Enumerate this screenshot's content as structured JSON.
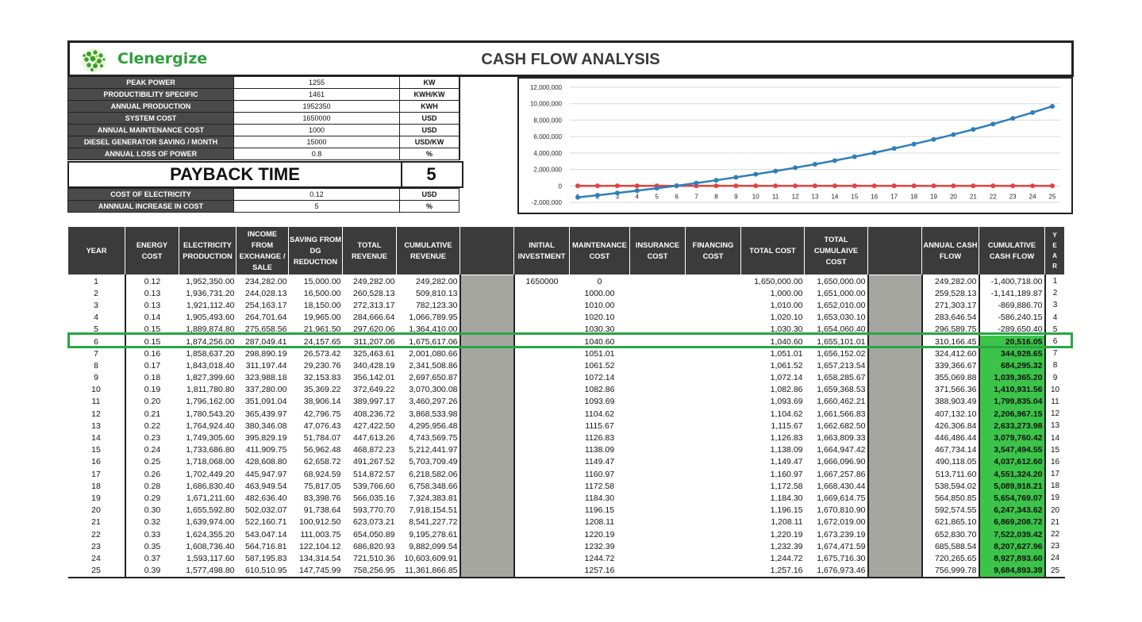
{
  "header": {
    "brand": "Clenergize",
    "title": "CASH FLOW ANALYSIS",
    "logo_icon": "green-dotted-sphere-icon"
  },
  "params": [
    {
      "label": "PEAK POWER",
      "value": "1255",
      "unit": "KW"
    },
    {
      "label": "PRODUCTIBILITY SPECIFIC",
      "value": "1461",
      "unit": "KWH/KW"
    },
    {
      "label": "ANNUAL PRODUCTION",
      "value": "1952350",
      "unit": "KWH"
    },
    {
      "label": "SYSTEM COST",
      "value": "1650000",
      "unit": "USD"
    },
    {
      "label": "ANNUAL MAINTENANCE COST",
      "value": "1000",
      "unit": "USD"
    },
    {
      "label": "DIESEL GENERATOR SAVING / MONTH",
      "value": "15000",
      "unit": "USD/KW"
    },
    {
      "label": "ANNUAL LOSS OF POWER",
      "value": "0.8",
      "unit": "%"
    }
  ],
  "payback": {
    "label": "PAYBACK TIME",
    "value": "5"
  },
  "params2": [
    {
      "label": "COST OF ELECTRICITY",
      "value": "0.12",
      "unit": "USD"
    },
    {
      "label": "ANNNUAL INCREASE IN COST",
      "value": "5",
      "unit": "%"
    }
  ],
  "table": {
    "headers": {
      "year": "YEAR",
      "energy_cost": "ENERGY COST",
      "electricity_production": "ELECTRICITY PRODUCTION",
      "income": "INCOME FROM EXCHANGE / SALE",
      "saving": "SAVING FROM DG REDUCTION",
      "total_revenue": "TOTAL REVENUE",
      "cumulative_revenue": "CUMULATIVE REVENUE",
      "initial_investment": "INITIAL INVESTMENT",
      "maintenance_cost": "MAINTENANCE COST",
      "insurance_cost": "INSURANCE COST",
      "financing_cost": "FINANCING COST",
      "total_cost": "TOTAL COST",
      "total_cumulative_cost": "TOTAL CUMULAIVE COST",
      "annual_cash_flow": "ANNUAL CASH FLOW",
      "cumulative_cash_flow": "CUMULATIVE CASH FLOW",
      "year_vertical": "Y E A R"
    },
    "highlight_year": 6,
    "rows": [
      {
        "year": "1",
        "ec": "0.12",
        "prod": "1,952,350.00",
        "inc": "234,282.00",
        "sav": "15,000.00",
        "rev": "249,282.00",
        "crev": "249,282.00",
        "init": "1650000",
        "maint": "0",
        "ins": "",
        "fin": "",
        "tcost": "1,650,000.00",
        "tcum": "1,650,000.00",
        "acf": "249,282.00",
        "ccf": "-1,400,718.00"
      },
      {
        "year": "2",
        "ec": "0.13",
        "prod": "1,936,731.20",
        "inc": "244,028.13",
        "sav": "16,500.00",
        "rev": "260,528.13",
        "crev": "509,810.13",
        "init": "",
        "maint": "1000.00",
        "ins": "",
        "fin": "",
        "tcost": "1,000.00",
        "tcum": "1,651,000.00",
        "acf": "259,528.13",
        "ccf": "-1,141,189.87"
      },
      {
        "year": "3",
        "ec": "0.13",
        "prod": "1,921,112.40",
        "inc": "254,163.17",
        "sav": "18,150.00",
        "rev": "272,313.17",
        "crev": "782,123.30",
        "init": "",
        "maint": "1010.00",
        "ins": "",
        "fin": "",
        "tcost": "1,010.00",
        "tcum": "1,652,010.00",
        "acf": "271,303.17",
        "ccf": "-869,886.70"
      },
      {
        "year": "4",
        "ec": "0.14",
        "prod": "1,905,493.60",
        "inc": "264,701.64",
        "sav": "19,965.00",
        "rev": "284,666.64",
        "crev": "1,066,789.95",
        "init": "",
        "maint": "1020.10",
        "ins": "",
        "fin": "",
        "tcost": "1,020.10",
        "tcum": "1,653,030.10",
        "acf": "283,646.54",
        "ccf": "-586,240.15"
      },
      {
        "year": "5",
        "ec": "0.15",
        "prod": "1,889,874.80",
        "inc": "275,658.56",
        "sav": "21,961.50",
        "rev": "297,620.06",
        "crev": "1,364,410.00",
        "init": "",
        "maint": "1030.30",
        "ins": "",
        "fin": "",
        "tcost": "1,030.30",
        "tcum": "1,654,060.40",
        "acf": "296,589.75",
        "ccf": "-289,650.40"
      },
      {
        "year": "6",
        "ec": "0.15",
        "prod": "1,874,256.00",
        "inc": "287,049.41",
        "sav": "24,157.65",
        "rev": "311,207.06",
        "crev": "1,675,617.06",
        "init": "",
        "maint": "1040.60",
        "ins": "",
        "fin": "",
        "tcost": "1,040.60",
        "tcum": "1,655,101.01",
        "acf": "310,166.45",
        "ccf": "20,516.05"
      },
      {
        "year": "7",
        "ec": "0.16",
        "prod": "1,858,637.20",
        "inc": "298,890.19",
        "sav": "26,573.42",
        "rev": "325,463.61",
        "crev": "2,001,080.66",
        "init": "",
        "maint": "1051.01",
        "ins": "",
        "fin": "",
        "tcost": "1,051.01",
        "tcum": "1,656,152.02",
        "acf": "324,412.60",
        "ccf": "344,928.65"
      },
      {
        "year": "8",
        "ec": "0.17",
        "prod": "1,843,018.40",
        "inc": "311,197.44",
        "sav": "29,230.76",
        "rev": "340,428.19",
        "crev": "2,341,508.86",
        "init": "",
        "maint": "1061.52",
        "ins": "",
        "fin": "",
        "tcost": "1,061.52",
        "tcum": "1,657,213.54",
        "acf": "339,366.67",
        "ccf": "684,295.32"
      },
      {
        "year": "9",
        "ec": "0.18",
        "prod": "1,827,399.60",
        "inc": "323,988.18",
        "sav": "32,153.83",
        "rev": "356,142.01",
        "crev": "2,697,650.87",
        "init": "",
        "maint": "1072.14",
        "ins": "",
        "fin": "",
        "tcost": "1,072.14",
        "tcum": "1,658,285.67",
        "acf": "355,069.88",
        "ccf": "1,039,365.20"
      },
      {
        "year": "10",
        "ec": "0.19",
        "prod": "1,811,780.80",
        "inc": "337,280.00",
        "sav": "35,369.22",
        "rev": "372,649.22",
        "crev": "3,070,300.08",
        "init": "",
        "maint": "1082.86",
        "ins": "",
        "fin": "",
        "tcost": "1,082.86",
        "tcum": "1,659,368.53",
        "acf": "371,566.36",
        "ccf": "1,410,931.56"
      },
      {
        "year": "11",
        "ec": "0.20",
        "prod": "1,796,162.00",
        "inc": "351,091.04",
        "sav": "38,906.14",
        "rev": "389,997.17",
        "crev": "3,460,297.26",
        "init": "",
        "maint": "1093.69",
        "ins": "",
        "fin": "",
        "tcost": "1,093.69",
        "tcum": "1,660,462.21",
        "acf": "388,903.49",
        "ccf": "1,799,835.04"
      },
      {
        "year": "12",
        "ec": "0.21",
        "prod": "1,780,543.20",
        "inc": "365,439.97",
        "sav": "42,796.75",
        "rev": "408,236.72",
        "crev": "3,868,533.98",
        "init": "",
        "maint": "1104.62",
        "ins": "",
        "fin": "",
        "tcost": "1,104.62",
        "tcum": "1,661,566.83",
        "acf": "407,132.10",
        "ccf": "2,206,967.15"
      },
      {
        "year": "13",
        "ec": "0.22",
        "prod": "1,764,924.40",
        "inc": "380,346.08",
        "sav": "47,076.43",
        "rev": "427,422.50",
        "crev": "4,295,956.48",
        "init": "",
        "maint": "1115.67",
        "ins": "",
        "fin": "",
        "tcost": "1,115.67",
        "tcum": "1,662,682.50",
        "acf": "426,306.84",
        "ccf": "2,633,273.98"
      },
      {
        "year": "14",
        "ec": "0.23",
        "prod": "1,749,305.60",
        "inc": "395,829.19",
        "sav": "51,784.07",
        "rev": "447,613.26",
        "crev": "4,743,569.75",
        "init": "",
        "maint": "1126.83",
        "ins": "",
        "fin": "",
        "tcost": "1,126.83",
        "tcum": "1,663,809.33",
        "acf": "446,486.44",
        "ccf": "3,079,760.42"
      },
      {
        "year": "15",
        "ec": "0.24",
        "prod": "1,733,686.80",
        "inc": "411,909.75",
        "sav": "56,962.48",
        "rev": "468,872.23",
        "crev": "5,212,441.97",
        "init": "",
        "maint": "1138.09",
        "ins": "",
        "fin": "",
        "tcost": "1,138.09",
        "tcum": "1,664,947.42",
        "acf": "467,734.14",
        "ccf": "3,547,494.55"
      },
      {
        "year": "16",
        "ec": "0.25",
        "prod": "1,718,068.00",
        "inc": "428,608.80",
        "sav": "62,658.72",
        "rev": "491,267.52",
        "crev": "5,703,709.49",
        "init": "",
        "maint": "1149.47",
        "ins": "",
        "fin": "",
        "tcost": "1,149.47",
        "tcum": "1,666,096.90",
        "acf": "490,118.05",
        "ccf": "4,037,612.60"
      },
      {
        "year": "17",
        "ec": "0.26",
        "prod": "1,702,449.20",
        "inc": "445,947.97",
        "sav": "68,924.59",
        "rev": "514,872.57",
        "crev": "6,218,582.06",
        "init": "",
        "maint": "1160.97",
        "ins": "",
        "fin": "",
        "tcost": "1,160.97",
        "tcum": "1,667,257.86",
        "acf": "513,711.60",
        "ccf": "4,551,324.20"
      },
      {
        "year": "18",
        "ec": "0.28",
        "prod": "1,686,830.40",
        "inc": "463,949.54",
        "sav": "75,817.05",
        "rev": "539,766.60",
        "crev": "6,758,348.66",
        "init": "",
        "maint": "1172.58",
        "ins": "",
        "fin": "",
        "tcost": "1,172.58",
        "tcum": "1,668,430.44",
        "acf": "538,594.02",
        "ccf": "5,089,918.21"
      },
      {
        "year": "19",
        "ec": "0.29",
        "prod": "1,671,211.60",
        "inc": "482,636.40",
        "sav": "83,398.76",
        "rev": "566,035.16",
        "crev": "7,324,383.81",
        "init": "",
        "maint": "1184.30",
        "ins": "",
        "fin": "",
        "tcost": "1,184.30",
        "tcum": "1,669,614.75",
        "acf": "564,850.85",
        "ccf": "5,654,769.07"
      },
      {
        "year": "20",
        "ec": "0.30",
        "prod": "1,655,592.80",
        "inc": "502,032.07",
        "sav": "91,738.64",
        "rev": "593,770.70",
        "crev": "7,918,154.51",
        "init": "",
        "maint": "1196.15",
        "ins": "",
        "fin": "",
        "tcost": "1,196.15",
        "tcum": "1,670,810.90",
        "acf": "592,574.55",
        "ccf": "6,247,343.62"
      },
      {
        "year": "21",
        "ec": "0.32",
        "prod": "1,639,974.00",
        "inc": "522,160.71",
        "sav": "100,912.50",
        "rev": "623,073.21",
        "crev": "8,541,227.72",
        "init": "",
        "maint": "1208.11",
        "ins": "",
        "fin": "",
        "tcost": "1,208.11",
        "tcum": "1,672,019.00",
        "acf": "621,865.10",
        "ccf": "6,869,208.72"
      },
      {
        "year": "22",
        "ec": "0.33",
        "prod": "1,624,355.20",
        "inc": "543,047.14",
        "sav": "111,003.75",
        "rev": "654,050.89",
        "crev": "9,195,278.61",
        "init": "",
        "maint": "1220.19",
        "ins": "",
        "fin": "",
        "tcost": "1,220.19",
        "tcum": "1,673,239.19",
        "acf": "652,830.70",
        "ccf": "7,522,039.42"
      },
      {
        "year": "23",
        "ec": "0.35",
        "prod": "1,608,736.40",
        "inc": "564,716.81",
        "sav": "122,104.12",
        "rev": "686,820.93",
        "crev": "9,882,099.54",
        "init": "",
        "maint": "1232.39",
        "ins": "",
        "fin": "",
        "tcost": "1,232.39",
        "tcum": "1,674,471.59",
        "acf": "685,588.54",
        "ccf": "8,207,627.96"
      },
      {
        "year": "24",
        "ec": "0.37",
        "prod": "1,593,117.60",
        "inc": "587,195.83",
        "sav": "134,314.54",
        "rev": "721,510.36",
        "crev": "10,603,609.91",
        "init": "",
        "maint": "1244.72",
        "ins": "",
        "fin": "",
        "tcost": "1,244.72",
        "tcum": "1,675,716.30",
        "acf": "720,265.65",
        "ccf": "8,927,893.60"
      },
      {
        "year": "25",
        "ec": "0.39",
        "prod": "1,577,498.80",
        "inc": "610,510.95",
        "sav": "147,745.99",
        "rev": "758,256.95",
        "crev": "11,361,866.85",
        "init": "",
        "maint": "1257.16",
        "ins": "",
        "fin": "",
        "tcost": "1,257.16",
        "tcum": "1,676,973.46",
        "acf": "756,999.78",
        "ccf": "9,684,893.39"
      }
    ]
  },
  "chart_data": {
    "type": "line",
    "x": [
      1,
      2,
      3,
      4,
      5,
      6,
      7,
      8,
      9,
      10,
      11,
      12,
      13,
      14,
      15,
      16,
      17,
      18,
      19,
      20,
      21,
      22,
      23,
      24,
      25
    ],
    "xlabels": [
      "1",
      "2",
      "3",
      "4",
      "5",
      "6",
      "7",
      "8",
      "9",
      "10",
      "11",
      "12",
      "13",
      "14",
      "15",
      "16",
      "17",
      "18",
      "19",
      "20",
      "21",
      "22",
      "23",
      "24",
      "25"
    ],
    "series": [
      {
        "color": "#2e7fb8",
        "values": [
          -1400718,
          -1141189.87,
          -869886.7,
          -586240.15,
          -289650.4,
          20516.05,
          344928.65,
          684295.32,
          1039365.2,
          1410931.56,
          1799835.04,
          2206967.15,
          2633273.98,
          3079760.42,
          3547494.55,
          4037612.6,
          4551324.2,
          5089918.21,
          5654769.07,
          6247343.62,
          6869208.72,
          7522039.42,
          8207627.96,
          8927893.6,
          9684893.39
        ]
      },
      {
        "color": "#e8413c",
        "values": [
          0,
          0,
          0,
          0,
          0,
          0,
          0,
          0,
          0,
          0,
          0,
          0,
          0,
          0,
          0,
          0,
          0,
          0,
          0,
          0,
          0,
          0,
          0,
          0,
          0
        ]
      }
    ],
    "ylim": [
      -2000000,
      12000000
    ],
    "yticks": [
      -2000000,
      0,
      2000000,
      4000000,
      6000000,
      8000000,
      10000000,
      12000000
    ],
    "ytick_labels": [
      "-2,000,000",
      "0",
      "2,000,000",
      "4,000,000",
      "6,000,000",
      "8,000,000",
      "10,000,000",
      "12,000,000"
    ],
    "grid": true,
    "title": "",
    "xlabel": "",
    "ylabel": ""
  }
}
